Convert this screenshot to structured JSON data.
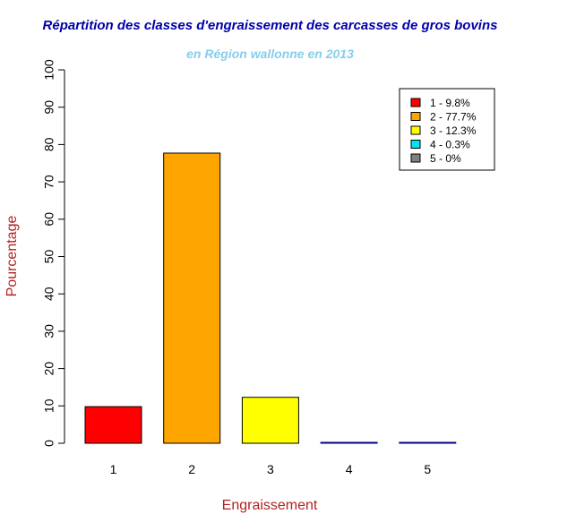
{
  "chart_data": {
    "type": "bar",
    "title": "Répartition des classes d'engraissement des carcasses de gros bovins",
    "subtitle": "en Région wallonne en 2013",
    "xlabel": "Engraissement",
    "ylabel": "Pourcentage",
    "categories": [
      "1",
      "2",
      "3",
      "4",
      "5"
    ],
    "values": [
      9.8,
      77.7,
      12.3,
      0.3,
      0
    ],
    "colors": [
      "#ff0000",
      "#ffa500",
      "#ffff00",
      "#00e5ee",
      "#808080"
    ],
    "ylim": [
      0,
      100
    ],
    "yticks": [
      0,
      10,
      20,
      30,
      40,
      50,
      60,
      70,
      80,
      90,
      100
    ],
    "grid": false,
    "legend": {
      "position": "top-right",
      "entries": [
        "1 - 9.8%",
        "2 - 77.7%",
        "3 - 12.3%",
        "4 - 0.3%",
        "5 - 0%"
      ]
    }
  }
}
